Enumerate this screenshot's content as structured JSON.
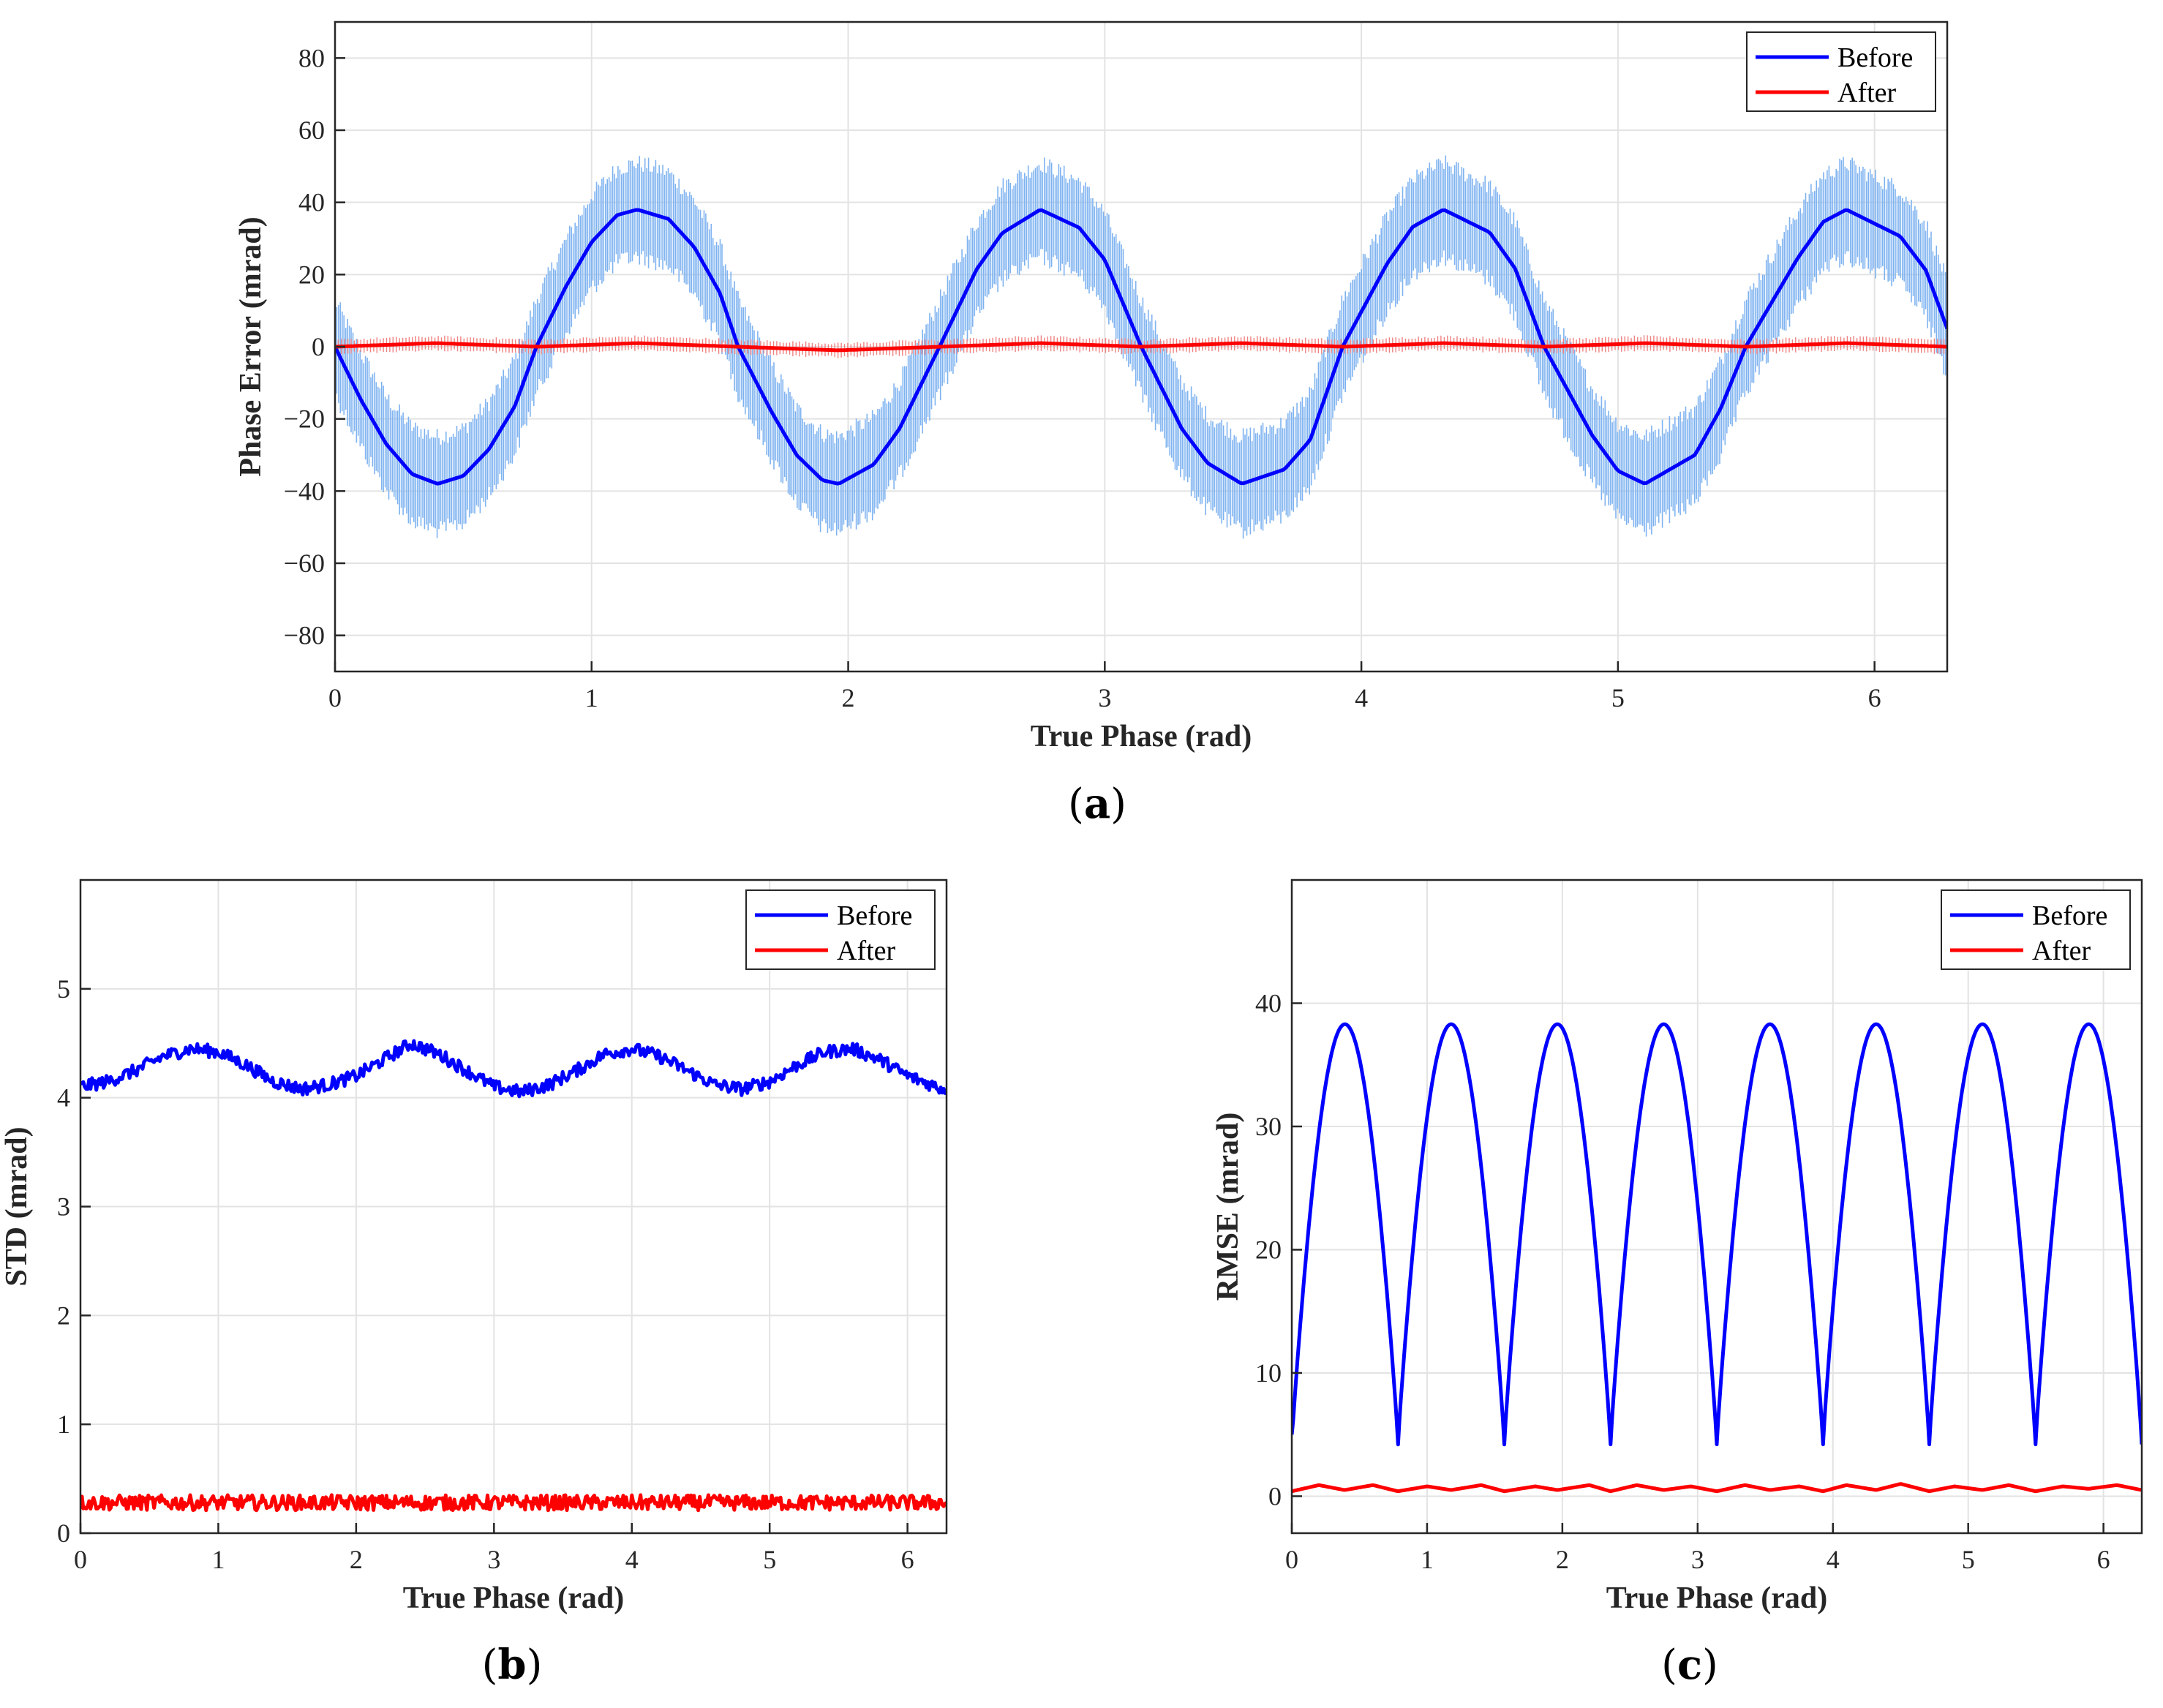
{
  "colors": {
    "before": "#0000ff",
    "before_scatter": "#7fb3f0",
    "after": "#ff0000",
    "after_scatter": "#f08080",
    "grid": "#e3e3e3",
    "axis": "#262626"
  },
  "chart_data": [
    {
      "panel": "(a)",
      "panel_letter": "a",
      "type": "line",
      "xlabel": "True Phase (rad)",
      "ylabel": "Phase Error (mrad)",
      "xlim": [
        0,
        6.2832
      ],
      "ylim": [
        -90,
        90
      ],
      "xticks": [
        0,
        1,
        2,
        3,
        4,
        5,
        6
      ],
      "yticks": [
        -80,
        -60,
        -40,
        -20,
        0,
        20,
        40,
        60,
        80
      ],
      "ytick_labels": [
        "−80",
        "−60",
        "−40",
        "−20",
        "0",
        "20",
        "40",
        "60",
        "80"
      ],
      "grid": true,
      "legend": "top-right",
      "series": [
        {
          "name": "Before",
          "x": [
            0,
            0.1,
            0.2,
            0.3,
            0.4,
            0.5,
            0.6,
            0.7,
            0.785,
            0.9,
            1.0,
            1.1,
            1.178,
            1.3,
            1.4,
            1.5,
            1.571,
            1.7,
            1.8,
            1.9,
            1.963,
            2.1,
            2.2,
            2.356,
            2.5,
            2.6,
            2.749,
            2.9,
            3.0,
            3.142,
            3.3,
            3.4,
            3.534,
            3.7,
            3.8,
            3.927,
            4.1,
            4.2,
            4.32,
            4.5,
            4.6,
            4.712,
            4.9,
            5.0,
            5.105,
            5.3,
            5.4,
            5.498,
            5.7,
            5.8,
            5.89,
            6.1,
            6.2,
            6.2832
          ],
          "values": [
            0,
            -14.6,
            -27.0,
            -35.3,
            -38.0,
            -35.8,
            -28.4,
            -16.6,
            0,
            16.7,
            29.0,
            36.5,
            38.0,
            35.4,
            27.6,
            14.9,
            0,
            -17.9,
            -30.1,
            -37.0,
            -38.0,
            -32.6,
            -22.7,
            0,
            21.4,
            31.5,
            38.0,
            33.0,
            24.1,
            0,
            -22.7,
            -32.2,
            -38.0,
            -34.0,
            -25.9,
            0,
            23.0,
            33.2,
            38.0,
            31.7,
            21.6,
            0,
            -24.6,
            -34.4,
            -38.0,
            -30.0,
            -17.2,
            0,
            24.5,
            34.6,
            38.0,
            30.6,
            21.2,
            5.0
          ],
          "spread": 14
        },
        {
          "name": "After",
          "x": [
            0,
            0.39,
            0.79,
            1.18,
            1.57,
            1.96,
            2.36,
            2.75,
            3.14,
            3.53,
            3.93,
            4.32,
            4.71,
            5.11,
            5.5,
            5.89,
            6.2832
          ],
          "values": [
            0,
            1,
            0,
            1,
            0,
            -1,
            0,
            1,
            0,
            1,
            0,
            1,
            0,
            1,
            0,
            1,
            0
          ],
          "spread": 2
        }
      ]
    },
    {
      "panel": "(b)",
      "panel_letter": "b",
      "type": "line",
      "xlabel": "True Phase (rad)",
      "ylabel": "STD (mrad)",
      "xlim": [
        0,
        6.2832
      ],
      "ylim": [
        0,
        6
      ],
      "xticks": [
        0,
        1,
        2,
        3,
        4,
        5,
        6
      ],
      "yticks": [
        0,
        1,
        2,
        3,
        4,
        5
      ],
      "ytick_labels": [
        "0",
        "1",
        "2",
        "3",
        "4",
        "5"
      ],
      "grid": true,
      "legend": "top-right",
      "series": [
        {
          "name": "Before",
          "x": [
            0,
            0.2,
            0.4,
            0.6,
            0.8,
            1.0,
            1.2,
            1.4,
            1.6,
            1.8,
            2.0,
            2.2,
            2.4,
            2.6,
            2.8,
            3.0,
            3.2,
            3.4,
            3.6,
            3.8,
            4.0,
            4.2,
            4.4,
            4.6,
            4.8,
            5.0,
            5.2,
            5.4,
            5.6,
            5.8,
            6.0,
            6.2832
          ],
          "values": [
            4.1,
            4.15,
            4.25,
            4.38,
            4.45,
            4.42,
            4.3,
            4.15,
            4.08,
            4.12,
            4.2,
            4.35,
            4.5,
            4.4,
            4.25,
            4.1,
            4.05,
            4.12,
            4.25,
            4.4,
            4.45,
            4.38,
            4.25,
            4.12,
            4.08,
            4.15,
            4.3,
            4.42,
            4.45,
            4.35,
            4.2,
            4.07
          ],
          "noise": 0.06
        },
        {
          "name": "After",
          "x": [
            0,
            6.2832
          ],
          "values": [
            0.28,
            0.28
          ],
          "noise": 0.07
        }
      ]
    },
    {
      "panel": "(c)",
      "panel_letter": "c",
      "type": "line",
      "xlabel": "True Phase (rad)",
      "ylabel": "RMSE (mrad)",
      "xlim": [
        0,
        6.2832
      ],
      "ylim": [
        -3,
        50
      ],
      "xticks": [
        0,
        1,
        2,
        3,
        4,
        5,
        6
      ],
      "yticks": [
        0,
        10,
        20,
        30,
        40
      ],
      "ytick_labels": [
        "0",
        "10",
        "20",
        "30",
        "40"
      ],
      "grid": true,
      "legend": "top-right",
      "series": [
        {
          "name": "Before",
          "x": [
            0,
            0.39,
            0.785,
            1.178,
            1.571,
            1.963,
            2.356,
            2.749,
            3.142,
            3.534,
            3.927,
            4.32,
            4.712,
            5.105,
            5.498,
            5.89,
            6.2832
          ],
          "values": [
            5,
            38.3,
            4.3,
            38.3,
            4.1,
            38.3,
            4.3,
            38.3,
            4.1,
            38.3,
            4.3,
            38.3,
            4.1,
            38.3,
            4.3,
            38.3,
            6.5
          ]
        },
        {
          "name": "After",
          "x": [
            0,
            0.2,
            0.39,
            0.6,
            0.785,
            1.0,
            1.178,
            1.4,
            1.571,
            1.8,
            1.963,
            2.2,
            2.356,
            2.55,
            2.749,
            2.95,
            3.142,
            3.35,
            3.534,
            3.75,
            3.927,
            4.1,
            4.32,
            4.5,
            4.712,
            4.9,
            5.105,
            5.3,
            5.498,
            5.7,
            5.89,
            6.1,
            6.2832
          ],
          "values": [
            0.4,
            0.9,
            0.5,
            0.9,
            0.4,
            0.8,
            0.5,
            0.9,
            0.4,
            0.8,
            0.5,
            0.9,
            0.4,
            0.9,
            0.5,
            0.8,
            0.4,
            0.9,
            0.5,
            0.8,
            0.4,
            0.9,
            0.5,
            1.0,
            0.4,
            0.8,
            0.5,
            0.9,
            0.4,
            0.8,
            0.6,
            0.9,
            0.5
          ]
        }
      ]
    }
  ]
}
